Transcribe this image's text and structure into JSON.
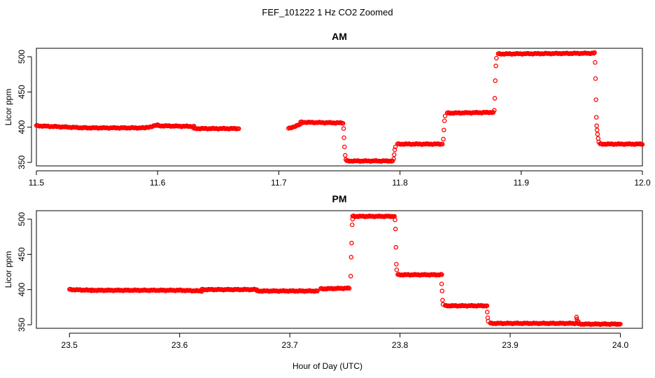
{
  "chart_data": [
    {
      "type": "scatter",
      "title": "AM",
      "figure_title": "FEF_101222  1 Hz CO2 Zoomed",
      "xlabel": "",
      "ylabel": "Licor ppm",
      "xlim": [
        11.5,
        12.0
      ],
      "ylim": [
        345,
        512
      ],
      "xticks": [
        "11.5",
        "11.6",
        "11.7",
        "11.8",
        "11.9",
        "12.0"
      ],
      "yticks": [
        "350",
        "400",
        "450",
        "500"
      ],
      "marker": "open-circle",
      "color": "#ff0000",
      "segments": [
        {
          "x0": 11.5,
          "x1": 11.54,
          "y0": 402,
          "y1": 399
        },
        {
          "x0": 11.54,
          "x1": 11.59,
          "y0": 399,
          "y1": 399
        },
        {
          "x0": 11.59,
          "x1": 11.6,
          "y0": 399,
          "y1": 403
        },
        {
          "x0": 11.6,
          "x1": 11.63,
          "y0": 402,
          "y1": 401
        },
        {
          "x0": 11.63,
          "x1": 11.667,
          "y0": 398,
          "y1": 398
        },
        {
          "x0": 11.708,
          "x1": 11.718,
          "y0": 398,
          "y1": 404
        },
        {
          "x0": 11.718,
          "x1": 11.753,
          "y0": 407,
          "y1": 406
        },
        {
          "x0": 11.756,
          "x1": 11.794,
          "y0": 352,
          "y1": 352
        },
        {
          "x0": 11.798,
          "x1": 11.835,
          "y0": 376,
          "y1": 376
        },
        {
          "x0": 11.839,
          "x1": 11.877,
          "y0": 420,
          "y1": 421
        },
        {
          "x0": 11.881,
          "x1": 11.96,
          "y0": 504,
          "y1": 505
        },
        {
          "x0": 11.965,
          "x1": 12.0,
          "y0": 376,
          "y1": 376
        }
      ],
      "transitions": [
        [
          11.7535,
          398
        ],
        [
          11.7538,
          385
        ],
        [
          11.7542,
          372
        ],
        [
          11.7548,
          360
        ],
        [
          11.7553,
          354
        ],
        [
          11.7948,
          355
        ],
        [
          11.7952,
          361
        ],
        [
          11.7957,
          368
        ],
        [
          11.7962,
          372
        ],
        [
          11.8358,
          383
        ],
        [
          11.8362,
          396
        ],
        [
          11.8367,
          409
        ],
        [
          11.8372,
          416
        ],
        [
          11.8778,
          424
        ],
        [
          11.8782,
          441
        ],
        [
          11.8786,
          466
        ],
        [
          11.8791,
          487
        ],
        [
          11.8796,
          498
        ],
        [
          11.9605,
          506
        ],
        [
          11.961,
          492
        ],
        [
          11.9613,
          469
        ],
        [
          11.9617,
          439
        ],
        [
          11.962,
          414
        ],
        [
          11.9623,
          402
        ],
        [
          11.9626,
          396
        ],
        [
          11.963,
          390
        ],
        [
          11.9635,
          384
        ],
        [
          11.964,
          379
        ]
      ]
    },
    {
      "type": "scatter",
      "title": "PM",
      "xlabel": "Hour of Day (UTC)",
      "ylabel": "Licor ppm",
      "xlim": [
        23.47,
        24.02
      ],
      "ylim": [
        345,
        512
      ],
      "xticks": [
        "23.5",
        "23.6",
        "23.7",
        "23.8",
        "23.9",
        "24.0"
      ],
      "yticks": [
        "350",
        "400",
        "450",
        "500"
      ],
      "marker": "open-circle",
      "color": "#ff0000",
      "segments": [
        {
          "x0": 23.5,
          "x1": 23.52,
          "y0": 400,
          "y1": 399
        },
        {
          "x0": 23.52,
          "x1": 23.6,
          "y0": 399,
          "y1": 399
        },
        {
          "x0": 23.6,
          "x1": 23.62,
          "y0": 399,
          "y1": 398
        },
        {
          "x0": 23.62,
          "x1": 23.67,
          "y0": 400,
          "y1": 400
        },
        {
          "x0": 23.67,
          "x1": 23.725,
          "y0": 398,
          "y1": 398
        },
        {
          "x0": 23.728,
          "x1": 23.754,
          "y0": 401,
          "y1": 402
        },
        {
          "x0": 23.757,
          "x1": 23.795,
          "y0": 504,
          "y1": 504
        },
        {
          "x0": 23.798,
          "x1": 23.838,
          "y0": 421,
          "y1": 421
        },
        {
          "x0": 23.841,
          "x1": 23.879,
          "y0": 377,
          "y1": 377
        },
        {
          "x0": 23.882,
          "x1": 23.96,
          "y0": 352,
          "y1": 352
        },
        {
          "x0": 23.962,
          "x1": 24.0,
          "y0": 351,
          "y1": 351
        }
      ],
      "transitions": [
        [
          23.7553,
          419
        ],
        [
          23.7557,
          446
        ],
        [
          23.7561,
          466
        ],
        [
          23.7566,
          492
        ],
        [
          23.757,
          500
        ],
        [
          23.7955,
          499
        ],
        [
          23.7959,
          486
        ],
        [
          23.7963,
          460
        ],
        [
          23.7967,
          436
        ],
        [
          23.797,
          428
        ],
        [
          23.8378,
          408
        ],
        [
          23.8382,
          398
        ],
        [
          23.8386,
          385
        ],
        [
          23.839,
          379
        ],
        [
          23.8792,
          368
        ],
        [
          23.8796,
          360
        ],
        [
          23.88,
          355
        ],
        [
          23.9602,
          361
        ],
        [
          23.9605,
          358
        ],
        [
          23.961,
          355
        ],
        [
          23.962,
          354
        ]
      ]
    }
  ]
}
